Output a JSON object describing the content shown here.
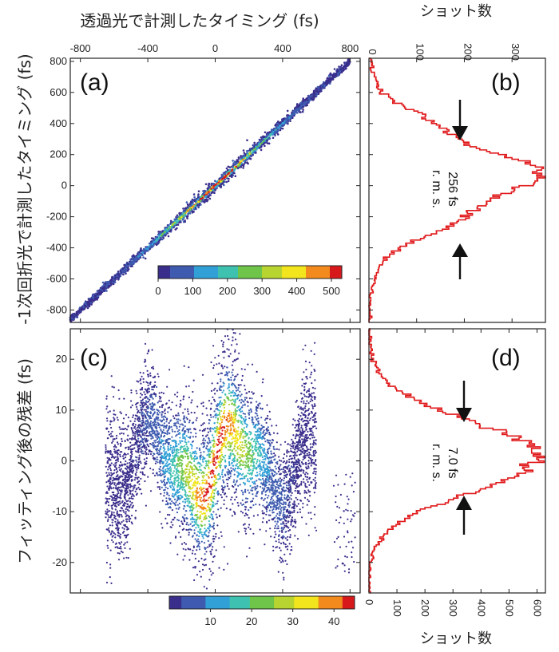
{
  "figure": {
    "top_axis_label": "透過光で計測したタイミング (fs)",
    "top_right_axis_label": "ショット数",
    "bottom_right_axis_label": "ショット数",
    "left_top_axis_label": "-1次回折光で計測したタイミング (fs)",
    "left_bottom_axis_label": "フィッティング後の残差 (fs)"
  },
  "colors": {
    "histogram": "#e0191b",
    "colormap": [
      "#3a2e8c",
      "#3e5bb0",
      "#31a0d6",
      "#3fc1b0",
      "#6ec54a",
      "#b8d430",
      "#f2e51d",
      "#f28a1e",
      "#d7191c"
    ]
  },
  "chart_data": [
    {
      "panel": "(a)",
      "type": "scatter",
      "x_ticks": [
        "-800",
        "-400",
        "0",
        "400",
        "800"
      ],
      "y_ticks": [
        "800",
        "600",
        "400",
        "200",
        "0",
        "-200",
        "-400",
        "-600",
        "-800"
      ],
      "xlim": [
        -860,
        860
      ],
      "ylim": [
        -880,
        820
      ],
      "slope": 1.0,
      "band_halfwidth": 18,
      "x_range": [
        -860,
        800
      ],
      "colorbar": {
        "ticks": [
          "0",
          "100",
          "200",
          "300",
          "400",
          "500"
        ],
        "range": [
          0,
          530
        ]
      }
    },
    {
      "panel": "(b)",
      "type": "histogram",
      "orientation": "horizontal",
      "x_ticks": [
        "0",
        "100",
        "200",
        "300"
      ],
      "xlim": [
        0,
        370
      ],
      "ylim": [
        -880,
        820
      ],
      "center": 60,
      "sigma": 256,
      "peak": 330,
      "annotation": {
        "value": "256 fs",
        "unit": "r. m. s."
      }
    },
    {
      "panel": "(c)",
      "type": "scatter",
      "y_ticks": [
        "20",
        "10",
        "0",
        "-10",
        "-20"
      ],
      "xlim": [
        -860,
        860
      ],
      "ylim": [
        -26,
        26
      ],
      "colorbar": {
        "ticks": [
          "10",
          "20",
          "30",
          "40"
        ],
        "range": [
          0,
          45
        ]
      }
    },
    {
      "panel": "(d)",
      "type": "histogram",
      "orientation": "horizontal",
      "x_ticks": [
        "0",
        "100",
        "200",
        "300",
        "400",
        "500",
        "600"
      ],
      "xlim": [
        0,
        630
      ],
      "ylim": [
        -26,
        26
      ],
      "center": 1.0,
      "sigma": 7.0,
      "peak": 600,
      "annotation": {
        "value": "7.0 fs",
        "unit": "r. m. s."
      }
    }
  ]
}
